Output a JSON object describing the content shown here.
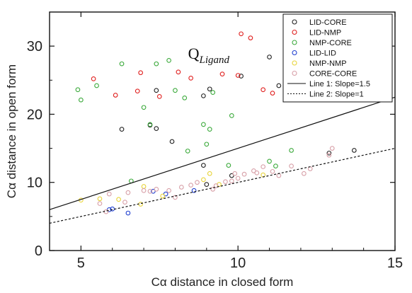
{
  "chart_data": {
    "type": "scatter",
    "xlabel": "Cα distance in closed form",
    "ylabel": "Cα distance in open form",
    "xlim": [
      4,
      15
    ],
    "ylim": [
      0,
      35
    ],
    "x_ticks": [
      5,
      10,
      15
    ],
    "y_ticks": [
      0,
      10,
      20,
      30
    ],
    "grid": false,
    "legend_position": "top-right",
    "annotation": {
      "main": "Q",
      "subscript": "Ligand",
      "x": 8.5,
      "y": 29
    },
    "series": [
      {
        "name": "LID-CORE",
        "marker": "open-circle",
        "color": "#222222",
        "points": [
          [
            11.0,
            28.4
          ],
          [
            10.1,
            25.6
          ],
          [
            11.3,
            24.2
          ],
          [
            9.1,
            23.7
          ],
          [
            8.9,
            22.7
          ],
          [
            6.3,
            17.8
          ],
          [
            7.4,
            23.5
          ],
          [
            7.2,
            18.4
          ],
          [
            7.9,
            16.0
          ],
          [
            8.9,
            12.5
          ],
          [
            9.0,
            9.7
          ],
          [
            9.8,
            11.0
          ],
          [
            12.9,
            14.3
          ],
          [
            13.7,
            14.7
          ],
          [
            7.4,
            17.9
          ]
        ]
      },
      {
        "name": "LID-NMP",
        "marker": "open-circle",
        "color": "#e0201f",
        "points": [
          [
            10.1,
            31.8
          ],
          [
            10.4,
            31.2
          ],
          [
            5.4,
            25.2
          ],
          [
            6.1,
            22.8
          ],
          [
            6.8,
            23.4
          ],
          [
            6.9,
            26.1
          ],
          [
            7.5,
            22.6
          ],
          [
            8.1,
            26.2
          ],
          [
            8.5,
            25.3
          ],
          [
            9.5,
            25.9
          ],
          [
            10.0,
            25.7
          ],
          [
            10.8,
            23.6
          ],
          [
            11.1,
            23.1
          ]
        ]
      },
      {
        "name": "NMP-CORE",
        "marker": "open-circle",
        "color": "#3caa3c",
        "points": [
          [
            4.9,
            23.6
          ],
          [
            5.0,
            22.1
          ],
          [
            5.5,
            24.2
          ],
          [
            6.3,
            27.4
          ],
          [
            7.4,
            27.4
          ],
          [
            7.8,
            27.9
          ],
          [
            8.0,
            23.5
          ],
          [
            8.3,
            22.4
          ],
          [
            8.9,
            18.5
          ],
          [
            9.1,
            17.8
          ],
          [
            9.2,
            23.2
          ],
          [
            9.0,
            15.6
          ],
          [
            9.8,
            19.8
          ],
          [
            8.4,
            14.6
          ],
          [
            7.0,
            21.0
          ],
          [
            6.6,
            10.2
          ],
          [
            7.2,
            18.5
          ],
          [
            11.7,
            14.7
          ],
          [
            11.2,
            12.4
          ],
          [
            11.0,
            13.1
          ],
          [
            9.7,
            12.5
          ]
        ]
      },
      {
        "name": "LID-LID",
        "marker": "open-circle",
        "color": "#2040d0",
        "points": [
          [
            5.9,
            6.0
          ],
          [
            6.0,
            6.1
          ],
          [
            6.5,
            5.5
          ],
          [
            7.7,
            8.3
          ],
          [
            8.6,
            8.8
          ],
          [
            7.3,
            8.7
          ]
        ]
      },
      {
        "name": "NMP-NMP",
        "marker": "open-circle",
        "color": "#e8d43a",
        "points": [
          [
            5.0,
            7.4
          ],
          [
            5.6,
            7.6
          ],
          [
            6.9,
            6.8
          ],
          [
            7.0,
            9.4
          ],
          [
            7.6,
            8.0
          ],
          [
            8.9,
            10.4
          ],
          [
            9.1,
            11.3
          ],
          [
            9.4,
            9.7
          ],
          [
            10.8,
            11.1
          ],
          [
            6.2,
            7.5
          ]
        ]
      },
      {
        "name": "CORE-CORE",
        "marker": "open-circle",
        "color": "#d8a0a8",
        "points": [
          [
            5.6,
            6.9
          ],
          [
            5.8,
            5.7
          ],
          [
            5.9,
            8.3
          ],
          [
            6.4,
            7.1
          ],
          [
            6.5,
            8.5
          ],
          [
            7.0,
            8.8
          ],
          [
            7.2,
            8.7
          ],
          [
            7.4,
            9.0
          ],
          [
            7.8,
            8.8
          ],
          [
            8.0,
            7.8
          ],
          [
            8.2,
            9.3
          ],
          [
            8.5,
            9.6
          ],
          [
            8.7,
            10.0
          ],
          [
            9.2,
            9.0
          ],
          [
            9.3,
            9.5
          ],
          [
            9.6,
            10.1
          ],
          [
            9.8,
            10.2
          ],
          [
            10.0,
            10.6
          ],
          [
            10.2,
            11.2
          ],
          [
            10.5,
            11.7
          ],
          [
            10.8,
            12.3
          ],
          [
            11.1,
            11.6
          ],
          [
            11.3,
            11.0
          ],
          [
            11.7,
            12.4
          ],
          [
            12.1,
            11.3
          ],
          [
            12.3,
            12.0
          ],
          [
            13.0,
            15.0
          ],
          [
            12.9,
            14.0
          ],
          [
            10.6,
            11.4
          ],
          [
            9.9,
            11.3
          ]
        ]
      }
    ],
    "lines": [
      {
        "name": "Line 1: Slope=1.5",
        "style": "solid",
        "color": "#111111",
        "x": [
          4,
          15
        ],
        "y": [
          6,
          22.5
        ]
      },
      {
        "name": "Line 2: Slope=1",
        "style": "dotted",
        "color": "#111111",
        "x": [
          4,
          15
        ],
        "y": [
          4,
          15
        ]
      }
    ]
  }
}
